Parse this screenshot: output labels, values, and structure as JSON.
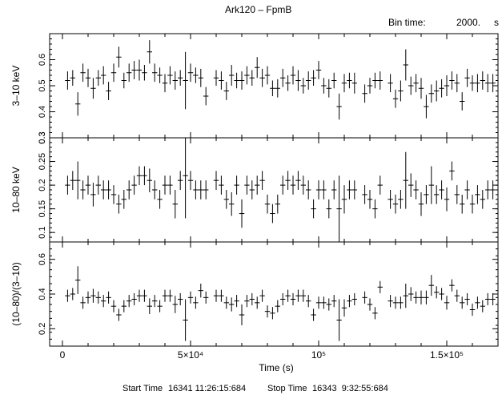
{
  "header": {
    "title": "Ark120 – FpmB",
    "bin_label": "Bin time:",
    "bin_value": "2000.",
    "bin_unit": "s"
  },
  "footer": {
    "start_label": "Start Time",
    "start_value": "16341 11:26:15:684",
    "stop_label": "Stop Time",
    "stop_value": "16343  9:32:55:684"
  },
  "chart_data": [
    {
      "type": "scatter",
      "title": "Ark120 – FpmB",
      "xlabel": "",
      "ylabel": "3–10 keV",
      "xlim": [
        -5000,
        170000
      ],
      "ylim": [
        0.3,
        0.7
      ],
      "yticks": [
        0.3,
        0.4,
        0.5,
        0.6
      ],
      "ytick_labels": [
        "0.3",
        "0.4",
        "0.5",
        "0.6"
      ],
      "x_half_width": 1000,
      "x": [
        2000,
        4000,
        6000,
        8000,
        10000,
        12000,
        14000,
        16000,
        18000,
        20000,
        22000,
        24000,
        26000,
        28000,
        30000,
        32000,
        34000,
        36000,
        38000,
        40000,
        42000,
        44000,
        46000,
        48000,
        50000,
        52000,
        54000,
        56000,
        60000,
        62000,
        64000,
        66000,
        68000,
        70000,
        72000,
        74000,
        76000,
        78000,
        80000,
        82000,
        84000,
        86000,
        88000,
        90000,
        92000,
        94000,
        96000,
        98000,
        100000,
        102000,
        104000,
        106000,
        108000,
        110000,
        112000,
        114000,
        118000,
        120000,
        122000,
        124000,
        128000,
        130000,
        132000,
        134000,
        136000,
        138000,
        140000,
        142000,
        144000,
        146000,
        148000,
        150000,
        152000,
        154000,
        156000,
        158000,
        160000,
        162000,
        164000,
        166000,
        168000
      ],
      "y": [
        0.52,
        0.53,
        0.43,
        0.55,
        0.53,
        0.49,
        0.53,
        0.54,
        0.48,
        0.55,
        0.61,
        0.52,
        0.55,
        0.56,
        0.56,
        0.55,
        0.63,
        0.55,
        0.54,
        0.51,
        0.54,
        0.52,
        0.53,
        0.52,
        0.55,
        0.54,
        0.53,
        0.46,
        0.53,
        0.52,
        0.48,
        0.54,
        0.52,
        0.52,
        0.54,
        0.53,
        0.57,
        0.53,
        0.54,
        0.49,
        0.49,
        0.53,
        0.51,
        0.54,
        0.52,
        0.5,
        0.52,
        0.53,
        0.56,
        0.5,
        0.49,
        0.52,
        0.42,
        0.51,
        0.52,
        0.51,
        0.47,
        0.5,
        0.52,
        0.52,
        0.51,
        0.45,
        0.48,
        0.58,
        0.5,
        0.51,
        0.49,
        0.42,
        0.47,
        0.48,
        0.49,
        0.5,
        0.52,
        0.51,
        0.44,
        0.53,
        0.51,
        0.51,
        0.52,
        0.51,
        0.51
      ],
      "yerr": [
        0.035,
        0.03,
        0.045,
        0.035,
        0.035,
        0.04,
        0.03,
        0.035,
        0.035,
        0.035,
        0.04,
        0.03,
        0.035,
        0.035,
        0.04,
        0.03,
        0.045,
        0.035,
        0.03,
        0.035,
        0.035,
        0.035,
        0.03,
        0.11,
        0.035,
        0.03,
        0.035,
        0.035,
        0.03,
        0.035,
        0.035,
        0.04,
        0.03,
        0.035,
        0.035,
        0.03,
        0.04,
        0.035,
        0.035,
        0.03,
        0.035,
        0.035,
        0.03,
        0.035,
        0.04,
        0.03,
        0.035,
        0.03,
        0.035,
        0.03,
        0.035,
        0.03,
        0.05,
        0.035,
        0.03,
        0.04,
        0.035,
        0.03,
        0.03,
        0.035,
        0.035,
        0.035,
        0.04,
        0.06,
        0.035,
        0.035,
        0.04,
        0.045,
        0.035,
        0.04,
        0.035,
        0.04,
        0.035,
        0.035,
        0.035,
        0.035,
        0.03,
        0.035,
        0.035,
        0.035,
        0.035
      ]
    },
    {
      "type": "scatter",
      "xlabel": "",
      "ylabel": "10–80 keV",
      "xlim": [
        -5000,
        170000
      ],
      "ylim": [
        0.08,
        0.3
      ],
      "yticks": [
        0.1,
        0.15,
        0.2,
        0.25,
        0.3
      ],
      "ytick_labels": [
        "0.1",
        "0.15",
        "0.2",
        "0.25",
        "0.3"
      ],
      "x_half_width": 1000,
      "x": [
        2000,
        4000,
        6000,
        8000,
        10000,
        12000,
        14000,
        16000,
        18000,
        20000,
        22000,
        24000,
        26000,
        28000,
        30000,
        32000,
        34000,
        36000,
        38000,
        40000,
        42000,
        44000,
        46000,
        48000,
        50000,
        52000,
        54000,
        56000,
        60000,
        62000,
        64000,
        66000,
        68000,
        70000,
        72000,
        74000,
        76000,
        78000,
        80000,
        82000,
        84000,
        86000,
        88000,
        90000,
        92000,
        94000,
        96000,
        98000,
        100000,
        102000,
        104000,
        106000,
        108000,
        110000,
        112000,
        114000,
        118000,
        120000,
        122000,
        124000,
        128000,
        130000,
        132000,
        134000,
        136000,
        138000,
        140000,
        142000,
        144000,
        146000,
        148000,
        150000,
        152000,
        154000,
        156000,
        158000,
        160000,
        162000,
        164000,
        166000,
        168000
      ],
      "y": [
        0.2,
        0.21,
        0.21,
        0.19,
        0.2,
        0.18,
        0.2,
        0.19,
        0.19,
        0.18,
        0.16,
        0.17,
        0.19,
        0.2,
        0.22,
        0.22,
        0.21,
        0.19,
        0.17,
        0.2,
        0.2,
        0.16,
        0.21,
        0.22,
        0.21,
        0.19,
        0.19,
        0.19,
        0.21,
        0.2,
        0.17,
        0.16,
        0.2,
        0.14,
        0.2,
        0.19,
        0.2,
        0.21,
        0.16,
        0.14,
        0.16,
        0.2,
        0.21,
        0.2,
        0.21,
        0.2,
        0.19,
        0.15,
        0.19,
        0.19,
        0.15,
        0.19,
        0.15,
        0.17,
        0.19,
        0.19,
        0.18,
        0.17,
        0.15,
        0.2,
        0.17,
        0.16,
        0.17,
        0.21,
        0.2,
        0.19,
        0.16,
        0.18,
        0.2,
        0.18,
        0.19,
        0.17,
        0.23,
        0.18,
        0.16,
        0.19,
        0.16,
        0.18,
        0.17,
        0.19,
        0.19
      ],
      "yerr": [
        0.02,
        0.02,
        0.04,
        0.02,
        0.02,
        0.025,
        0.02,
        0.02,
        0.02,
        0.02,
        0.02,
        0.02,
        0.02,
        0.02,
        0.02,
        0.02,
        0.025,
        0.02,
        0.02,
        0.02,
        0.02,
        0.03,
        0.02,
        0.09,
        0.02,
        0.02,
        0.02,
        0.02,
        0.02,
        0.02,
        0.02,
        0.025,
        0.02,
        0.03,
        0.02,
        0.02,
        0.02,
        0.02,
        0.02,
        0.02,
        0.02,
        0.02,
        0.02,
        0.02,
        0.02,
        0.02,
        0.02,
        0.02,
        0.02,
        0.02,
        0.02,
        0.02,
        0.07,
        0.03,
        0.02,
        0.02,
        0.02,
        0.02,
        0.02,
        0.02,
        0.02,
        0.02,
        0.02,
        0.06,
        0.025,
        0.02,
        0.025,
        0.02,
        0.04,
        0.02,
        0.02,
        0.025,
        0.02,
        0.02,
        0.02,
        0.02,
        0.02,
        0.02,
        0.02,
        0.02,
        0.02
      ]
    },
    {
      "type": "scatter",
      "xlabel": "Time (s)",
      "ylabel": "(10–80)/(3–10)",
      "xlim": [
        -5000,
        170000
      ],
      "ylim": [
        0.1,
        0.7
      ],
      "yticks": [
        0.2,
        0.4,
        0.6
      ],
      "ytick_labels": [
        "0.2",
        "0.4",
        "0.6"
      ],
      "xticks": [
        0,
        50000,
        100000,
        150000
      ],
      "xtick_labels": [
        "0",
        "5×10⁴",
        "10⁵",
        "1.5×10⁵"
      ],
      "x_half_width": 1000,
      "x": [
        2000,
        4000,
        6000,
        8000,
        10000,
        12000,
        14000,
        16000,
        18000,
        20000,
        22000,
        24000,
        26000,
        28000,
        30000,
        32000,
        34000,
        36000,
        38000,
        40000,
        42000,
        44000,
        46000,
        48000,
        50000,
        52000,
        54000,
        56000,
        60000,
        62000,
        64000,
        66000,
        68000,
        70000,
        72000,
        74000,
        76000,
        78000,
        80000,
        82000,
        84000,
        86000,
        88000,
        90000,
        92000,
        94000,
        96000,
        98000,
        100000,
        102000,
        104000,
        106000,
        108000,
        110000,
        112000,
        114000,
        118000,
        120000,
        122000,
        124000,
        128000,
        130000,
        132000,
        134000,
        136000,
        138000,
        140000,
        142000,
        144000,
        146000,
        148000,
        150000,
        152000,
        154000,
        156000,
        158000,
        160000,
        162000,
        164000,
        166000,
        168000
      ],
      "y": [
        0.39,
        0.4,
        0.48,
        0.35,
        0.38,
        0.39,
        0.38,
        0.36,
        0.38,
        0.33,
        0.28,
        0.33,
        0.36,
        0.37,
        0.39,
        0.39,
        0.33,
        0.36,
        0.33,
        0.39,
        0.39,
        0.34,
        0.37,
        0.25,
        0.38,
        0.35,
        0.42,
        0.38,
        0.39,
        0.39,
        0.35,
        0.34,
        0.36,
        0.28,
        0.36,
        0.37,
        0.35,
        0.39,
        0.3,
        0.29,
        0.33,
        0.37,
        0.39,
        0.37,
        0.39,
        0.39,
        0.36,
        0.28,
        0.35,
        0.35,
        0.34,
        0.36,
        0.25,
        0.32,
        0.36,
        0.37,
        0.38,
        0.34,
        0.29,
        0.44,
        0.36,
        0.35,
        0.35,
        0.39,
        0.4,
        0.38,
        0.38,
        0.38,
        0.45,
        0.41,
        0.4,
        0.35,
        0.45,
        0.39,
        0.35,
        0.37,
        0.31,
        0.35,
        0.33,
        0.37,
        0.37
      ],
      "yerr": [
        0.035,
        0.035,
        0.08,
        0.035,
        0.035,
        0.04,
        0.035,
        0.035,
        0.035,
        0.035,
        0.035,
        0.035,
        0.035,
        0.035,
        0.035,
        0.035,
        0.045,
        0.035,
        0.035,
        0.035,
        0.035,
        0.05,
        0.035,
        0.12,
        0.035,
        0.035,
        0.04,
        0.035,
        0.035,
        0.035,
        0.035,
        0.04,
        0.035,
        0.06,
        0.035,
        0.035,
        0.035,
        0.035,
        0.035,
        0.035,
        0.035,
        0.035,
        0.035,
        0.035,
        0.035,
        0.035,
        0.035,
        0.035,
        0.035,
        0.035,
        0.035,
        0.035,
        0.12,
        0.05,
        0.035,
        0.035,
        0.035,
        0.035,
        0.035,
        0.035,
        0.035,
        0.035,
        0.035,
        0.07,
        0.04,
        0.035,
        0.04,
        0.04,
        0.06,
        0.035,
        0.035,
        0.04,
        0.035,
        0.035,
        0.035,
        0.035,
        0.035,
        0.035,
        0.035,
        0.035,
        0.035
      ]
    }
  ]
}
